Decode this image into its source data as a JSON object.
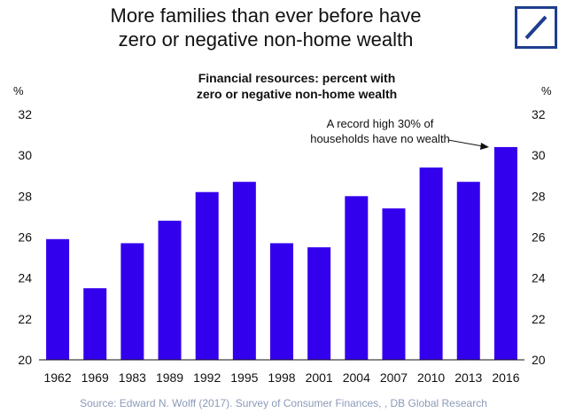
{
  "headline": {
    "line1": "More families than ever before have",
    "line2": "zero or negative non-home wealth"
  },
  "logo": {
    "icon": "deutsche-bank-slash-square-icon",
    "color": "#1f3e8f"
  },
  "chart_data": {
    "type": "bar",
    "title_line1": "Financial resources: percent with",
    "title_line2": "zero or negative non-home wealth",
    "ylabel_left": "%",
    "ylabel_right": "%",
    "categories": [
      "1962",
      "1969",
      "1983",
      "1989",
      "1992",
      "1995",
      "1998",
      "2001",
      "2004",
      "2007",
      "2010",
      "2013",
      "2016"
    ],
    "values": [
      25.9,
      23.5,
      25.7,
      26.8,
      28.2,
      28.7,
      25.7,
      25.5,
      28.0,
      27.4,
      29.4,
      28.7,
      30.4
    ],
    "ylim": [
      20,
      32
    ],
    "yticks": [
      "20",
      "22",
      "24",
      "26",
      "28",
      "30",
      "32"
    ],
    "bar_color": "#3300ee",
    "grid": false,
    "annotation": {
      "line1": "A record high 30% of",
      "line2": "households have no wealth",
      "target_category": "2016"
    }
  },
  "source": "Source: Edward N. Wolff (2017). Survey of Consumer Finances, , DB Global Research"
}
